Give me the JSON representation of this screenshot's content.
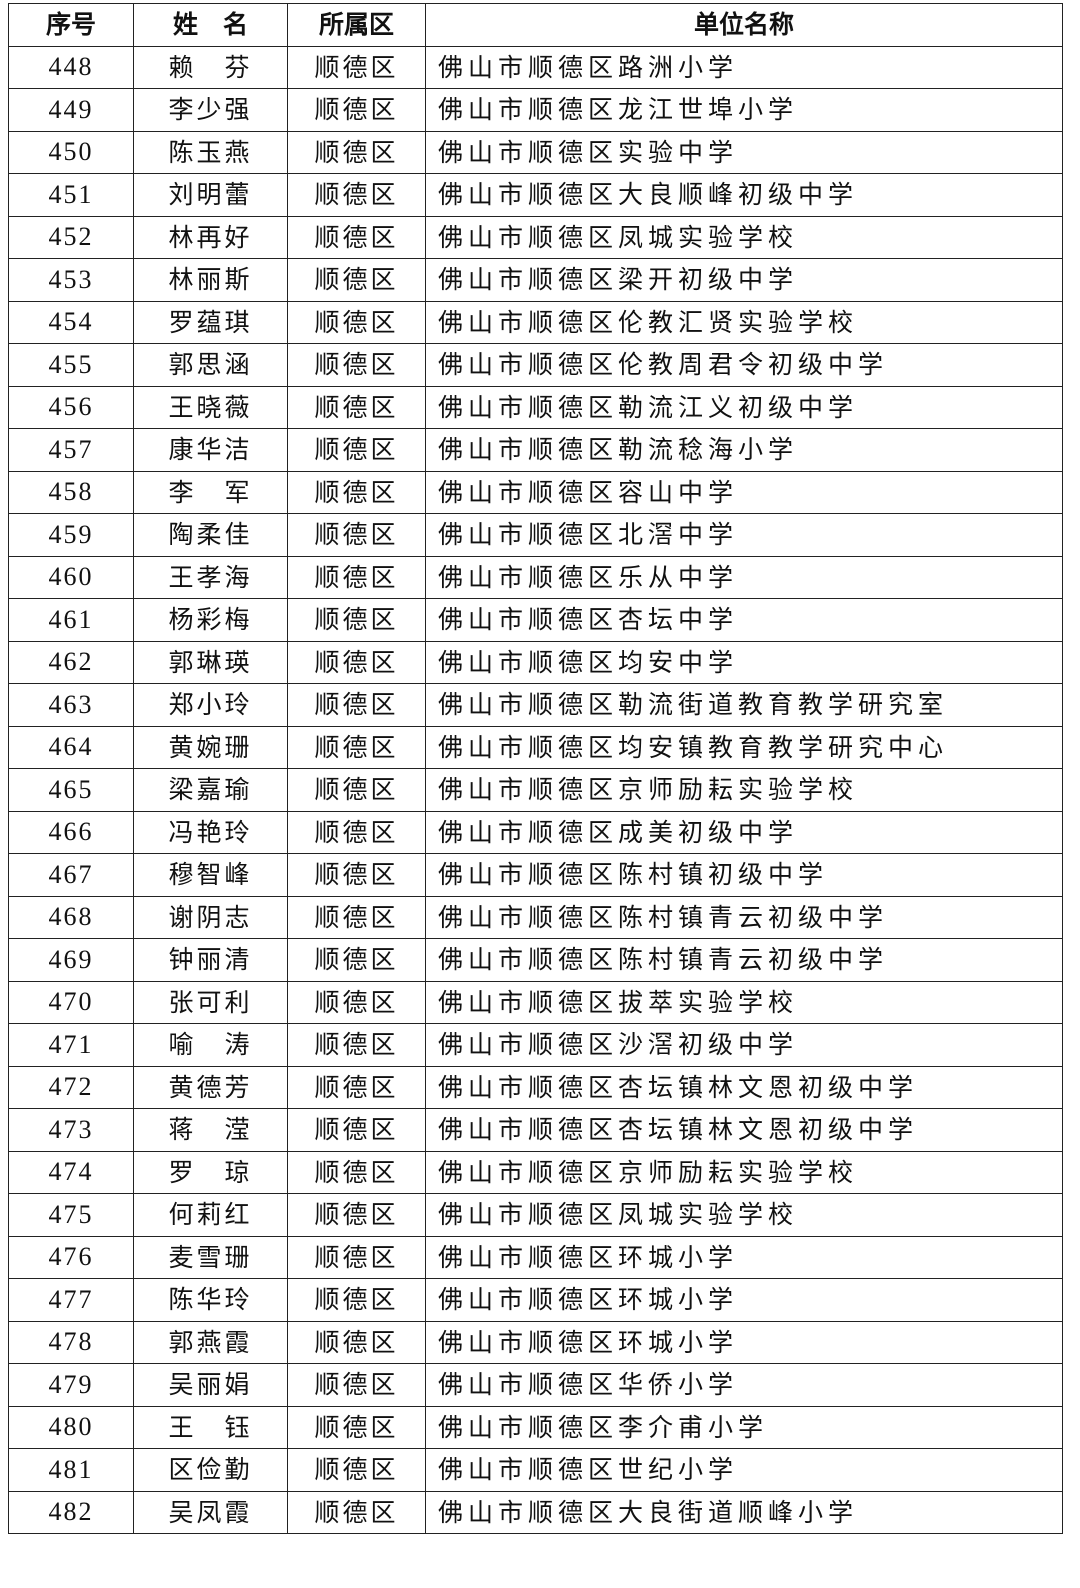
{
  "headers": [
    "序号",
    "姓　名",
    "所属区",
    "单位名称"
  ],
  "rows": [
    [
      "448",
      "赖　芬",
      "顺德区",
      "佛山市顺德区路洲小学"
    ],
    [
      "449",
      "李少强",
      "顺德区",
      "佛山市顺德区龙江世埠小学"
    ],
    [
      "450",
      "陈玉燕",
      "顺德区",
      "佛山市顺德区实验中学"
    ],
    [
      "451",
      "刘明蕾",
      "顺德区",
      "佛山市顺德区大良顺峰初级中学"
    ],
    [
      "452",
      "林再好",
      "顺德区",
      "佛山市顺德区凤城实验学校"
    ],
    [
      "453",
      "林丽斯",
      "顺德区",
      "佛山市顺德区梁开初级中学"
    ],
    [
      "454",
      "罗蕴琪",
      "顺德区",
      "佛山市顺德区伦教汇贤实验学校"
    ],
    [
      "455",
      "郭思涵",
      "顺德区",
      "佛山市顺德区伦教周君令初级中学"
    ],
    [
      "456",
      "王晓薇",
      "顺德区",
      "佛山市顺德区勒流江义初级中学"
    ],
    [
      "457",
      "康华洁",
      "顺德区",
      "佛山市顺德区勒流稔海小学"
    ],
    [
      "458",
      "李　军",
      "顺德区",
      "佛山市顺德区容山中学"
    ],
    [
      "459",
      "陶柔佳",
      "顺德区",
      "佛山市顺德区北滘中学"
    ],
    [
      "460",
      "王孝海",
      "顺德区",
      "佛山市顺德区乐从中学"
    ],
    [
      "461",
      "杨彩梅",
      "顺德区",
      "佛山市顺德区杏坛中学"
    ],
    [
      "462",
      "郭琳瑛",
      "顺德区",
      "佛山市顺德区均安中学"
    ],
    [
      "463",
      "郑小玲",
      "顺德区",
      "佛山市顺德区勒流街道教育教学研究室"
    ],
    [
      "464",
      "黄婉珊",
      "顺德区",
      "佛山市顺德区均安镇教育教学研究中心"
    ],
    [
      "465",
      "梁嘉瑜",
      "顺德区",
      "佛山市顺德区京师励耘实验学校"
    ],
    [
      "466",
      "冯艳玲",
      "顺德区",
      "佛山市顺德区成美初级中学"
    ],
    [
      "467",
      "穆智峰",
      "顺德区",
      "佛山市顺德区陈村镇初级中学"
    ],
    [
      "468",
      "谢阴志",
      "顺德区",
      "佛山市顺德区陈村镇青云初级中学"
    ],
    [
      "469",
      "钟丽清",
      "顺德区",
      "佛山市顺德区陈村镇青云初级中学"
    ],
    [
      "470",
      "张可利",
      "顺德区",
      "佛山市顺德区拔萃实验学校"
    ],
    [
      "471",
      "喻　涛",
      "顺德区",
      "佛山市顺德区沙滘初级中学"
    ],
    [
      "472",
      "黄德芳",
      "顺德区",
      "佛山市顺德区杏坛镇林文恩初级中学"
    ],
    [
      "473",
      "蒋　滢",
      "顺德区",
      "佛山市顺德区杏坛镇林文恩初级中学"
    ],
    [
      "474",
      "罗　琼",
      "顺德区",
      "佛山市顺德区京师励耘实验学校"
    ],
    [
      "475",
      "何莉红",
      "顺德区",
      "佛山市顺德区凤城实验学校"
    ],
    [
      "476",
      "麦雪珊",
      "顺德区",
      "佛山市顺德区环城小学"
    ],
    [
      "477",
      "陈华玲",
      "顺德区",
      "佛山市顺德区环城小学"
    ],
    [
      "478",
      "郭燕霞",
      "顺德区",
      "佛山市顺德区环城小学"
    ],
    [
      "479",
      "吴丽娟",
      "顺德区",
      "佛山市顺德区华侨小学"
    ],
    [
      "480",
      "王　钰",
      "顺德区",
      "佛山市顺德区李介甫小学"
    ],
    [
      "481",
      "区俭勤",
      "顺德区",
      "佛山市顺德区世纪小学"
    ],
    [
      "482",
      "吴凤霞",
      "顺德区",
      "佛山市顺德区大良街道顺峰小学"
    ]
  ]
}
